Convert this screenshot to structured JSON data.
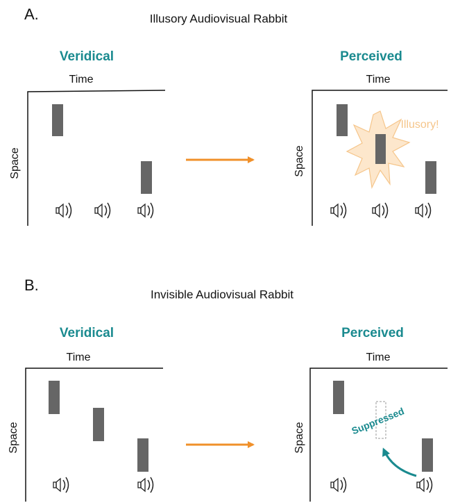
{
  "panels": [
    {
      "label": "A.",
      "title": "Illusory Audiovisual Rabbit",
      "left": {
        "heading": "Veridical",
        "x_label": "Time",
        "y_label": "Space"
      },
      "right": {
        "heading": "Perceived",
        "x_label": "Time",
        "y_label": "Space",
        "annotation": "Illusory!"
      }
    },
    {
      "label": "B.",
      "title": "Invisible Audiovisual Rabbit",
      "left": {
        "heading": "Veridical",
        "x_label": "Time",
        "y_label": "Space"
      },
      "right": {
        "heading": "Perceived",
        "x_label": "Time",
        "y_label": "Space",
        "annotation": "Suppressed"
      }
    }
  ]
}
